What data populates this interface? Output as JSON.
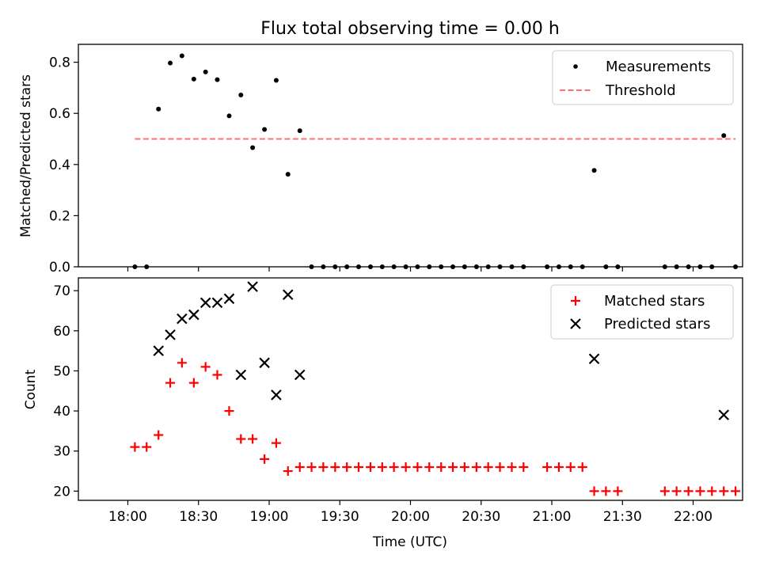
{
  "chart_data": [
    {
      "type": "scatter",
      "title": "Flux total observing time = 0.00 h",
      "xlabel": "",
      "ylabel": "Matched/Predicted stars",
      "xlim": [
        -0.35,
        4.35
      ],
      "ylim": [
        0,
        0.87
      ],
      "yticks": [
        0.0,
        0.2,
        0.4,
        0.6,
        0.8
      ],
      "ytick_labels": [
        "0.0",
        "0.2",
        "0.4",
        "0.6",
        "0.8"
      ],
      "legend_position": "top-right",
      "series": [
        {
          "name": "Measurements",
          "color": "#000000",
          "marker": "dot",
          "points": [
            [
              0.05,
              0.0
            ],
            [
              0.133,
              0.0
            ],
            [
              0.217,
              0.617
            ],
            [
              0.3,
              0.797
            ],
            [
              0.383,
              0.825
            ],
            [
              0.467,
              0.734
            ],
            [
              0.55,
              0.762
            ],
            [
              0.633,
              0.732
            ],
            [
              0.717,
              0.59
            ],
            [
              0.8,
              0.672
            ],
            [
              0.883,
              0.466
            ],
            [
              0.967,
              0.537
            ],
            [
              1.05,
              0.729
            ],
            [
              1.133,
              0.362
            ],
            [
              1.217,
              0.532
            ],
            [
              1.3,
              0.0
            ],
            [
              1.383,
              0.0
            ],
            [
              1.467,
              0.0
            ],
            [
              1.55,
              0.0
            ],
            [
              1.633,
              0.0
            ],
            [
              1.717,
              0.0
            ],
            [
              1.8,
              0.0
            ],
            [
              1.883,
              0.0
            ],
            [
              1.967,
              0.0
            ],
            [
              2.05,
              0.0
            ],
            [
              2.133,
              0.0
            ],
            [
              2.217,
              0.0
            ],
            [
              2.3,
              0.0
            ],
            [
              2.383,
              0.0
            ],
            [
              2.467,
              0.0
            ],
            [
              2.55,
              0.0
            ],
            [
              2.633,
              0.0
            ],
            [
              2.717,
              0.0
            ],
            [
              2.8,
              0.0
            ],
            [
              2.967,
              0.0
            ],
            [
              3.05,
              0.0
            ],
            [
              3.133,
              0.0
            ],
            [
              3.217,
              0.0
            ],
            [
              3.3,
              0.377
            ],
            [
              3.383,
              0.0
            ],
            [
              3.467,
              0.0
            ],
            [
              3.8,
              0.0
            ],
            [
              3.883,
              0.0
            ],
            [
              3.967,
              0.0
            ],
            [
              4.05,
              0.0
            ],
            [
              4.133,
              0.0
            ],
            [
              4.217,
              0.513
            ],
            [
              4.3,
              0.0
            ]
          ]
        },
        {
          "name": "Threshold",
          "color": "#ff7070",
          "style": "dashed",
          "points": [
            [
              0.05,
              0.5
            ],
            [
              4.3,
              0.5
            ]
          ]
        }
      ]
    },
    {
      "type": "scatter",
      "title": "",
      "xlabel": "Time (UTC)",
      "ylabel": "Count",
      "xlim": [
        -0.35,
        4.35
      ],
      "ylim": [
        17.7,
        73.2
      ],
      "yticks": [
        20,
        30,
        40,
        50,
        60,
        70
      ],
      "ytick_labels": [
        "20",
        "30",
        "40",
        "50",
        "60",
        "70"
      ],
      "xticks": [
        0,
        0.5,
        1,
        1.5,
        2,
        2.5,
        3,
        3.5,
        4
      ],
      "xtick_labels": [
        "18:00",
        "18:30",
        "19:00",
        "19:30",
        "20:00",
        "20:30",
        "21:00",
        "21:30",
        "22:00"
      ],
      "legend_position": "top-right",
      "series": [
        {
          "name": "Matched stars",
          "color": "#ff0000",
          "marker": "plus",
          "points": [
            [
              0.05,
              31
            ],
            [
              0.133,
              31
            ],
            [
              0.217,
              34
            ],
            [
              0.3,
              47
            ],
            [
              0.383,
              52
            ],
            [
              0.467,
              47
            ],
            [
              0.55,
              51
            ],
            [
              0.633,
              49
            ],
            [
              0.717,
              40
            ],
            [
              0.8,
              33
            ],
            [
              0.883,
              33
            ],
            [
              0.967,
              28
            ],
            [
              1.05,
              32
            ],
            [
              1.133,
              25
            ],
            [
              1.217,
              26
            ],
            [
              1.3,
              26
            ],
            [
              1.383,
              26
            ],
            [
              1.467,
              26
            ],
            [
              1.55,
              26
            ],
            [
              1.633,
              26
            ],
            [
              1.717,
              26
            ],
            [
              1.8,
              26
            ],
            [
              1.883,
              26
            ],
            [
              1.967,
              26
            ],
            [
              2.05,
              26
            ],
            [
              2.133,
              26
            ],
            [
              2.217,
              26
            ],
            [
              2.3,
              26
            ],
            [
              2.383,
              26
            ],
            [
              2.467,
              26
            ],
            [
              2.55,
              26
            ],
            [
              2.633,
              26
            ],
            [
              2.717,
              26
            ],
            [
              2.8,
              26
            ],
            [
              2.967,
              26
            ],
            [
              3.05,
              26
            ],
            [
              3.133,
              26
            ],
            [
              3.217,
              26
            ],
            [
              3.3,
              20
            ],
            [
              3.383,
              20
            ],
            [
              3.467,
              20
            ],
            [
              3.8,
              20
            ],
            [
              3.883,
              20
            ],
            [
              3.967,
              20
            ],
            [
              4.05,
              20
            ],
            [
              4.133,
              20
            ],
            [
              4.217,
              20
            ],
            [
              4.3,
              20
            ]
          ]
        },
        {
          "name": "Predicted stars",
          "color": "#000000",
          "marker": "x",
          "points": [
            [
              0.217,
              55
            ],
            [
              0.3,
              59
            ],
            [
              0.383,
              63
            ],
            [
              0.467,
              64
            ],
            [
              0.55,
              67
            ],
            [
              0.633,
              67
            ],
            [
              0.717,
              68
            ],
            [
              0.8,
              49
            ],
            [
              0.883,
              71
            ],
            [
              0.967,
              52
            ],
            [
              1.05,
              44
            ],
            [
              1.133,
              69
            ],
            [
              1.217,
              49
            ],
            [
              3.3,
              53
            ],
            [
              4.217,
              39
            ]
          ]
        }
      ]
    }
  ]
}
